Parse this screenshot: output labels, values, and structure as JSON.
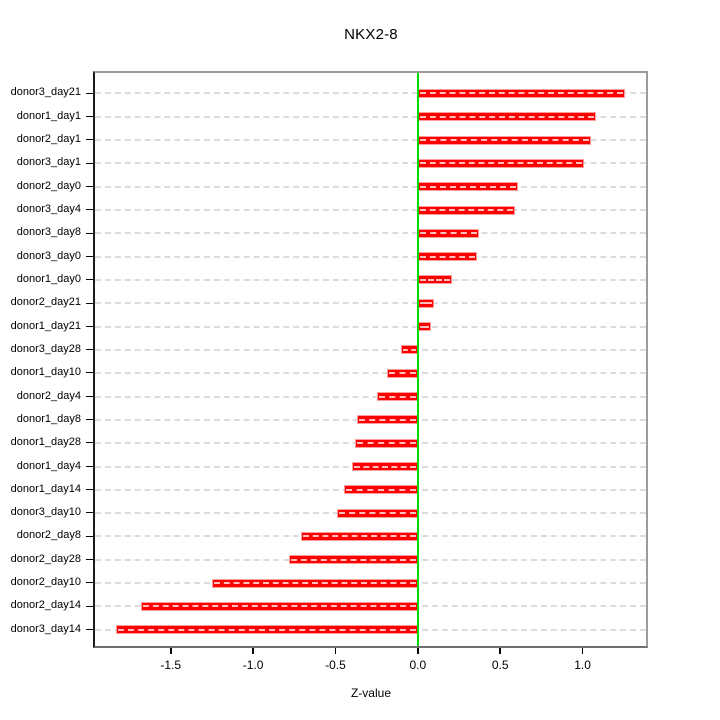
{
  "title": "NKX2-8",
  "chart_data": {
    "type": "bar",
    "orientation": "horizontal",
    "title": "NKX2-8",
    "xlabel": "Z-value",
    "ylabel": "",
    "category_order": "top-to-bottom",
    "categories": [
      "donor3_day21",
      "donor1_day1",
      "donor2_day1",
      "donor3_day1",
      "donor2_day0",
      "donor3_day4",
      "donor3_day8",
      "donor3_day0",
      "donor1_day0",
      "donor2_day21",
      "donor1_day21",
      "donor3_day28",
      "donor1_day10",
      "donor2_day4",
      "donor1_day8",
      "donor1_day28",
      "donor1_day4",
      "donor1_day14",
      "donor3_day10",
      "donor2_day8",
      "donor2_day28",
      "donor2_day10",
      "donor2_day14",
      "donor3_day14"
    ],
    "values": [
      1.26,
      1.08,
      1.05,
      1.01,
      0.61,
      0.59,
      0.37,
      0.36,
      0.21,
      0.1,
      0.08,
      -0.1,
      -0.19,
      -0.25,
      -0.37,
      -0.38,
      -0.4,
      -0.45,
      -0.49,
      -0.71,
      -0.78,
      -1.25,
      -1.68,
      -1.83
    ],
    "xlim": [
      -1.96,
      1.385
    ],
    "xticks": [
      -1.5,
      -1.0,
      -0.5,
      0.0,
      0.5,
      1.0
    ],
    "xtick_labels": [
      "-1.5",
      "-1.0",
      "-0.5",
      "0.0",
      "0.5",
      "1.0"
    ],
    "grid": true,
    "grid_style": "dashed",
    "legend": "none",
    "colors": {
      "bar": "#ff0000",
      "bar_border": "#ff9c9c",
      "zero_line": "#00dc00",
      "gridline": "#dcdcdc",
      "box_border": "#9b9b9b",
      "axis": "#000000",
      "background": "#ffffff"
    }
  }
}
